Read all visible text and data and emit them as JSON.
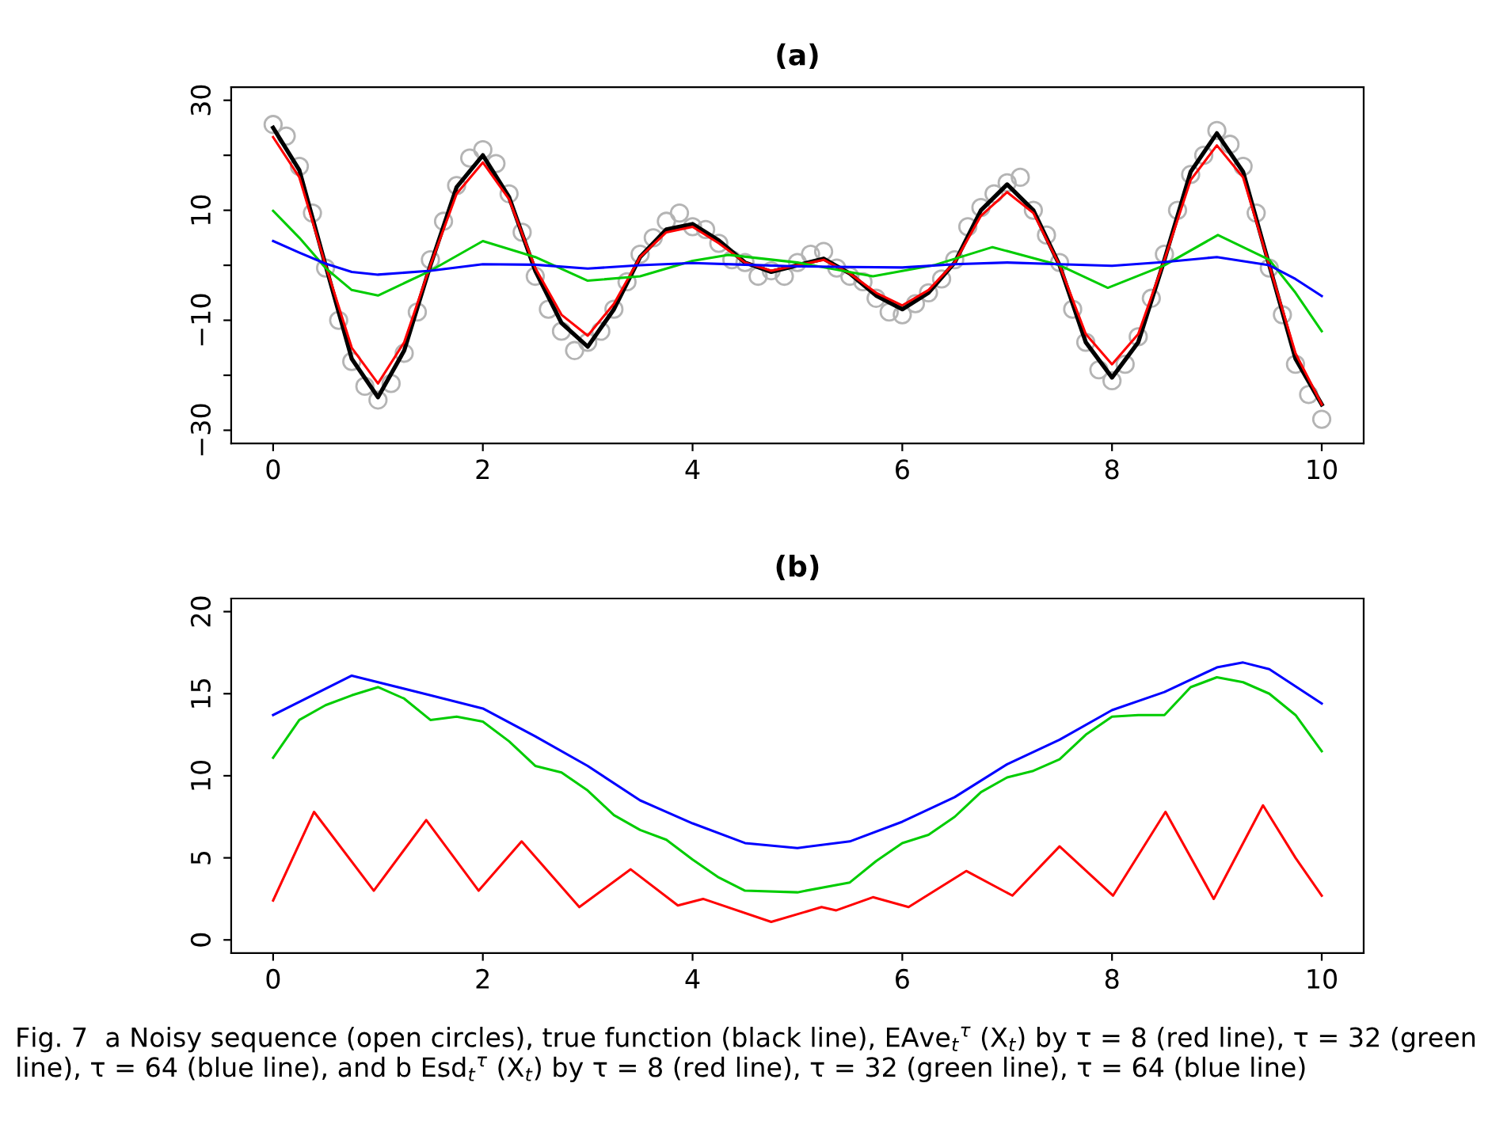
{
  "chart_data": [
    {
      "type": "line",
      "title": "(a)",
      "xlim": [
        -0.4,
        10.4
      ],
      "xticks": [
        0,
        2,
        4,
        6,
        8,
        10
      ],
      "ylim": [
        -32.4,
        32.4
      ],
      "yticks": [
        {
          "value": -30,
          "label": "−30"
        },
        {
          "value": -20,
          "label": null
        },
        {
          "value": -10,
          "label": "−10"
        },
        {
          "value": 0,
          "label": null
        },
        10,
        {
          "value": 20,
          "label": null
        },
        30
      ],
      "grid": false,
      "legend": false,
      "series": [
        {
          "type": "scatter",
          "marker": "circle",
          "color": "#b4b4b4",
          "x": [
            0,
            0.125,
            0.25,
            0.375,
            0.5,
            0.625,
            0.75,
            0.875,
            1,
            1.125,
            1.25,
            1.375,
            1.5,
            1.625,
            1.75,
            1.875,
            2,
            2.125,
            2.25,
            2.375,
            2.5,
            2.625,
            2.75,
            2.875,
            3,
            3.125,
            3.25,
            3.375,
            3.5,
            3.625,
            3.75,
            3.875,
            4,
            4.125,
            4.25,
            4.375,
            4.5,
            4.625,
            4.75,
            4.875,
            5,
            5.125,
            5.25,
            5.375,
            5.5,
            5.625,
            5.75,
            5.875,
            6,
            6.125,
            6.25,
            6.375,
            6.5,
            6.625,
            6.75,
            6.875,
            7,
            7.125,
            7.25,
            7.375,
            7.5,
            7.625,
            7.75,
            7.875,
            8,
            8.125,
            8.25,
            8.375,
            8.5,
            8.625,
            8.75,
            8.875,
            9,
            9.125,
            9.25,
            9.375,
            9.5,
            9.625,
            9.75,
            9.875,
            10
          ],
          "values": [
            25.6,
            23.5,
            18,
            9.5,
            -0.5,
            -10,
            -17.5,
            -22,
            -24.5,
            -21.5,
            -16,
            -8.5,
            1,
            8,
            14.5,
            19.5,
            21,
            18.5,
            13,
            6,
            -2,
            -8,
            -12,
            -15.5,
            -14,
            -12,
            -8,
            -3,
            2,
            5,
            8,
            9.5,
            7,
            6.5,
            4,
            1,
            0.5,
            -2,
            -1,
            -2,
            0.5,
            2,
            2.5,
            -0.5,
            -2,
            -3,
            -6,
            -8.5,
            -9,
            -7,
            -5,
            -2.5,
            1,
            7,
            10.5,
            13,
            15,
            16,
            10,
            5.5,
            0.5,
            -8,
            -14,
            -19,
            -21,
            -18,
            -13,
            -6,
            2,
            10,
            16.5,
            20,
            24.5,
            22,
            18,
            9.5,
            -0.5,
            -9,
            -18,
            -23.5,
            -28
          ]
        },
        {
          "type": "line",
          "color": "#000000",
          "x": [
            0,
            0.25,
            0.5,
            0.75,
            1,
            1.25,
            1.5,
            1.75,
            2,
            2.25,
            2.5,
            2.75,
            3,
            3.25,
            3.5,
            3.75,
            4,
            4.25,
            4.5,
            4.75,
            5,
            5.25,
            5.5,
            5.75,
            6,
            6.25,
            6.5,
            6.75,
            7,
            7.25,
            7.5,
            7.75,
            8,
            8.25,
            8.5,
            8.75,
            9,
            9.25,
            9.5,
            9.75,
            10
          ],
          "values": [
            25,
            17.3,
            0,
            -17,
            -24,
            -15.5,
            0,
            14.2,
            20,
            12.4,
            -1,
            -10.5,
            -14.8,
            -8,
            1.5,
            6.5,
            7.5,
            4.5,
            0.5,
            -1.2,
            0,
            1.2,
            -1.5,
            -5.5,
            -8,
            -5,
            0.5,
            10,
            14.7,
            10,
            0,
            -14,
            -20.4,
            -14,
            1,
            17,
            24,
            17,
            0,
            -17,
            -25.3
          ]
        },
        {
          "type": "line",
          "color": "#ff0000",
          "x": [
            0,
            0.25,
            0.5,
            0.75,
            1,
            1.25,
            1.5,
            1.75,
            2,
            2.25,
            2.5,
            2.75,
            3,
            3.25,
            3.5,
            3.75,
            4,
            4.25,
            4.5,
            4.75,
            5,
            5.25,
            5.5,
            5.75,
            6,
            6.25,
            6.5,
            6.75,
            7,
            7.25,
            7.5,
            7.75,
            8,
            8.25,
            8.5,
            8.75,
            9,
            9.25,
            9.5,
            9.75,
            10
          ],
          "values": [
            23.3,
            16,
            0,
            -15,
            -21.5,
            -14,
            0,
            13,
            18.7,
            12,
            -0.5,
            -9,
            -12.8,
            -7,
            1.5,
            6,
            7,
            4,
            0.5,
            -1,
            0,
            1,
            -1.5,
            -5,
            -7.3,
            -4.5,
            0.5,
            9,
            13.3,
            9.5,
            0,
            -12.5,
            -18,
            -12.5,
            1,
            15.5,
            21.8,
            16,
            0,
            -16,
            -25.3
          ]
        },
        {
          "type": "line",
          "color": "#00cc00",
          "x": [
            0,
            0.25,
            0.5,
            0.75,
            1,
            1.5,
            2,
            2.5,
            3,
            3.5,
            4,
            4.34,
            5,
            5.72,
            6.3,
            6.86,
            7.5,
            7.96,
            8.5,
            9.01,
            9.5,
            9.75,
            10
          ],
          "values": [
            9.9,
            5,
            -0.5,
            -4.5,
            -5.5,
            -1,
            4.4,
            1.5,
            -2.8,
            -2,
            0.8,
            1.9,
            0.5,
            -2,
            0,
            3.3,
            0,
            -4.1,
            0,
            5.5,
            1,
            -5,
            -12
          ]
        },
        {
          "type": "line",
          "color": "#0000ff",
          "x": [
            0,
            0.25,
            0.5,
            0.75,
            1,
            1.5,
            2,
            2.5,
            3,
            3.5,
            4,
            4.5,
            5,
            5.5,
            6,
            6.5,
            7,
            7.5,
            8,
            8.5,
            9,
            9.5,
            9.75,
            10
          ],
          "values": [
            4.4,
            2.3,
            0.3,
            -1.2,
            -1.7,
            -1,
            0.2,
            0.1,
            -0.6,
            0,
            0.4,
            0.1,
            -0.2,
            -0.3,
            -0.4,
            0.2,
            0.5,
            0.2,
            -0.1,
            0.6,
            1.5,
            0,
            -2.5,
            -5.6
          ]
        }
      ]
    },
    {
      "type": "line",
      "title": "(b)",
      "xlim": [
        -0.4,
        10.4
      ],
      "xticks": [
        0,
        2,
        4,
        6,
        8,
        10
      ],
      "ylim": [
        -0.8,
        20.8
      ],
      "yticks": [
        0,
        5,
        10,
        15,
        20
      ],
      "grid": false,
      "legend": false,
      "series": [
        {
          "color": "#0000ff",
          "x": [
            0,
            0.75,
            1.5,
            2,
            2.5,
            3,
            3.5,
            4,
            4.5,
            5,
            5.5,
            6,
            6.5,
            7,
            7.5,
            8,
            8.5,
            9,
            9.25,
            9.5,
            10
          ],
          "values": [
            13.7,
            16.1,
            14.9,
            14.1,
            12.4,
            10.6,
            8.5,
            7.1,
            5.9,
            5.6,
            6,
            7.2,
            8.7,
            10.7,
            12.2,
            14,
            15.1,
            16.6,
            16.9,
            16.5,
            14.4
          ]
        },
        {
          "color": "#00cc00",
          "x": [
            0,
            0.25,
            0.5,
            0.75,
            1,
            1.25,
            1.5,
            1.75,
            2,
            2.25,
            2.5,
            2.75,
            3,
            3.25,
            3.5,
            3.75,
            4,
            4.25,
            4.5,
            5,
            5.5,
            5.75,
            6,
            6.25,
            6.5,
            6.75,
            7,
            7.25,
            7.5,
            7.75,
            8,
            8.25,
            8.5,
            8.75,
            9,
            9.25,
            9.5,
            9.75,
            10
          ],
          "values": [
            11.1,
            13.4,
            14.3,
            14.9,
            15.4,
            14.7,
            13.4,
            13.6,
            13.3,
            12.1,
            10.6,
            10.2,
            9.1,
            7.6,
            6.7,
            6.1,
            4.9,
            3.8,
            3,
            2.9,
            3.5,
            4.8,
            5.9,
            6.4,
            7.5,
            9,
            9.9,
            10.3,
            11,
            12.5,
            13.6,
            13.7,
            13.7,
            15.4,
            16,
            15.7,
            15,
            13.7,
            11.5
          ]
        },
        {
          "color": "#ff0000",
          "x": [
            0,
            0.39,
            0.96,
            1.46,
            1.96,
            2.37,
            2.92,
            3.41,
            3.86,
            4.1,
            4.75,
            5.23,
            5.37,
            5.72,
            6.06,
            6.61,
            7.05,
            7.5,
            8.01,
            8.51,
            8.97,
            9.44,
            9.75,
            10
          ],
          "values": [
            2.4,
            7.8,
            3,
            7.3,
            3,
            6,
            2,
            4.3,
            2.1,
            2.5,
            1.1,
            2,
            1.8,
            2.6,
            2,
            4.2,
            2.7,
            5.7,
            2.7,
            7.8,
            2.5,
            8.2,
            5,
            2.7
          ]
        }
      ],
      "annotations": [
        "Fig. 7  a Noisy sequence (open circles), true function (black line), EAve$_{t}$$^{τ}$ (X$_{t}$) by τ = 8 (red line), τ = 32 (green line), τ = 64 (blue line), and b Esd$_{t}$$^{τ}$ (X$_{t}$) by τ = 8 (red line), τ = 32 (green line), τ = 64 (blue line)"
      ]
    }
  ]
}
